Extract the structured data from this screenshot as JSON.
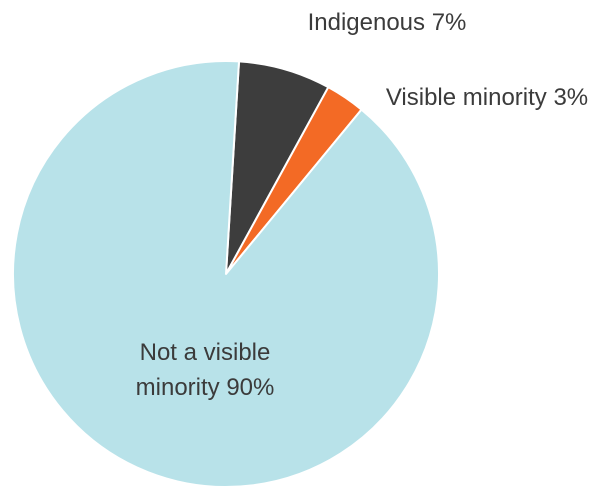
{
  "chart_data": {
    "type": "pie",
    "title": "",
    "slices": [
      {
        "label": "Not a visible minority",
        "value": 90,
        "color": "#b8e2e9"
      },
      {
        "label": "Indigenous",
        "value": 7,
        "color": "#3d3d3d"
      },
      {
        "label": "Visible minority",
        "value": 3,
        "color": "#f36a25"
      }
    ],
    "slice_labels": [
      {
        "line1": "Indigenous 7%",
        "line2": ""
      },
      {
        "line1": "Visible minority 3%",
        "line2": ""
      },
      {
        "line1": "Not a visible",
        "line2": "minority 90%"
      }
    ],
    "legend": "none"
  }
}
